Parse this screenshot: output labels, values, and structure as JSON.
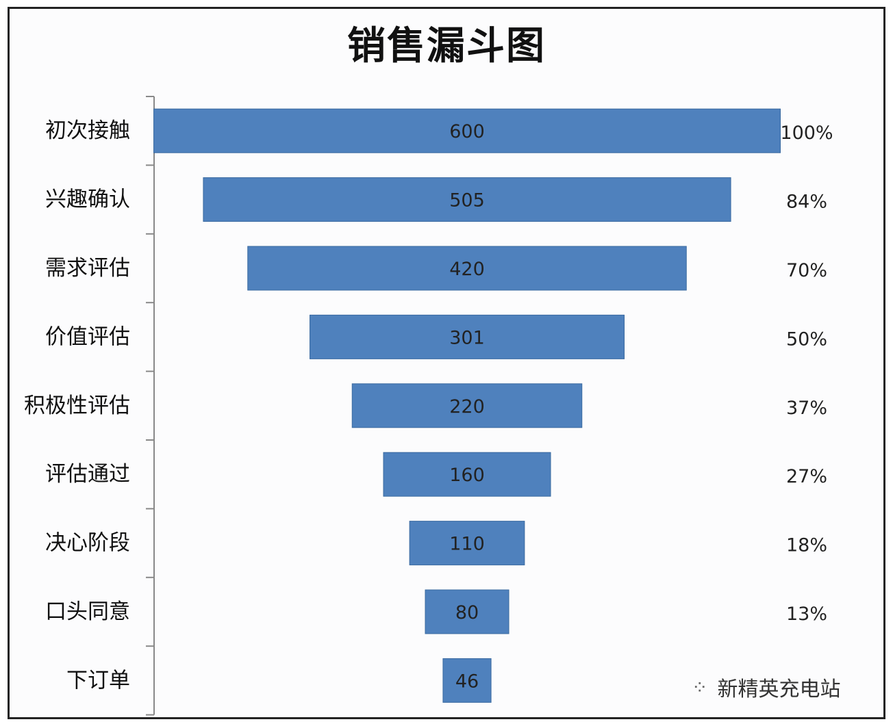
{
  "chart_data": {
    "type": "bar",
    "subtype": "funnel",
    "title": "销售漏斗图",
    "categories": [
      "初次接触",
      "兴趣确认",
      "需求评估",
      "价值评估",
      "积极性评估",
      "评估通过",
      "决心阶段",
      "口头同意",
      "下订单"
    ],
    "values": [
      600,
      505,
      420,
      301,
      220,
      160,
      110,
      80,
      46
    ],
    "percent_labels": [
      "100%",
      "84%",
      "70%",
      "50%",
      "37%",
      "27%",
      "18%",
      "13%",
      ""
    ],
    "xlim": [
      0,
      600
    ],
    "grid": false,
    "legend": "none",
    "colors": {
      "bar": "#4f81bd",
      "bar_border": "#3a6aa0",
      "text": "#222222"
    }
  },
  "watermark": {
    "text": "新精英充电站",
    "icon": "wechat-icon"
  }
}
